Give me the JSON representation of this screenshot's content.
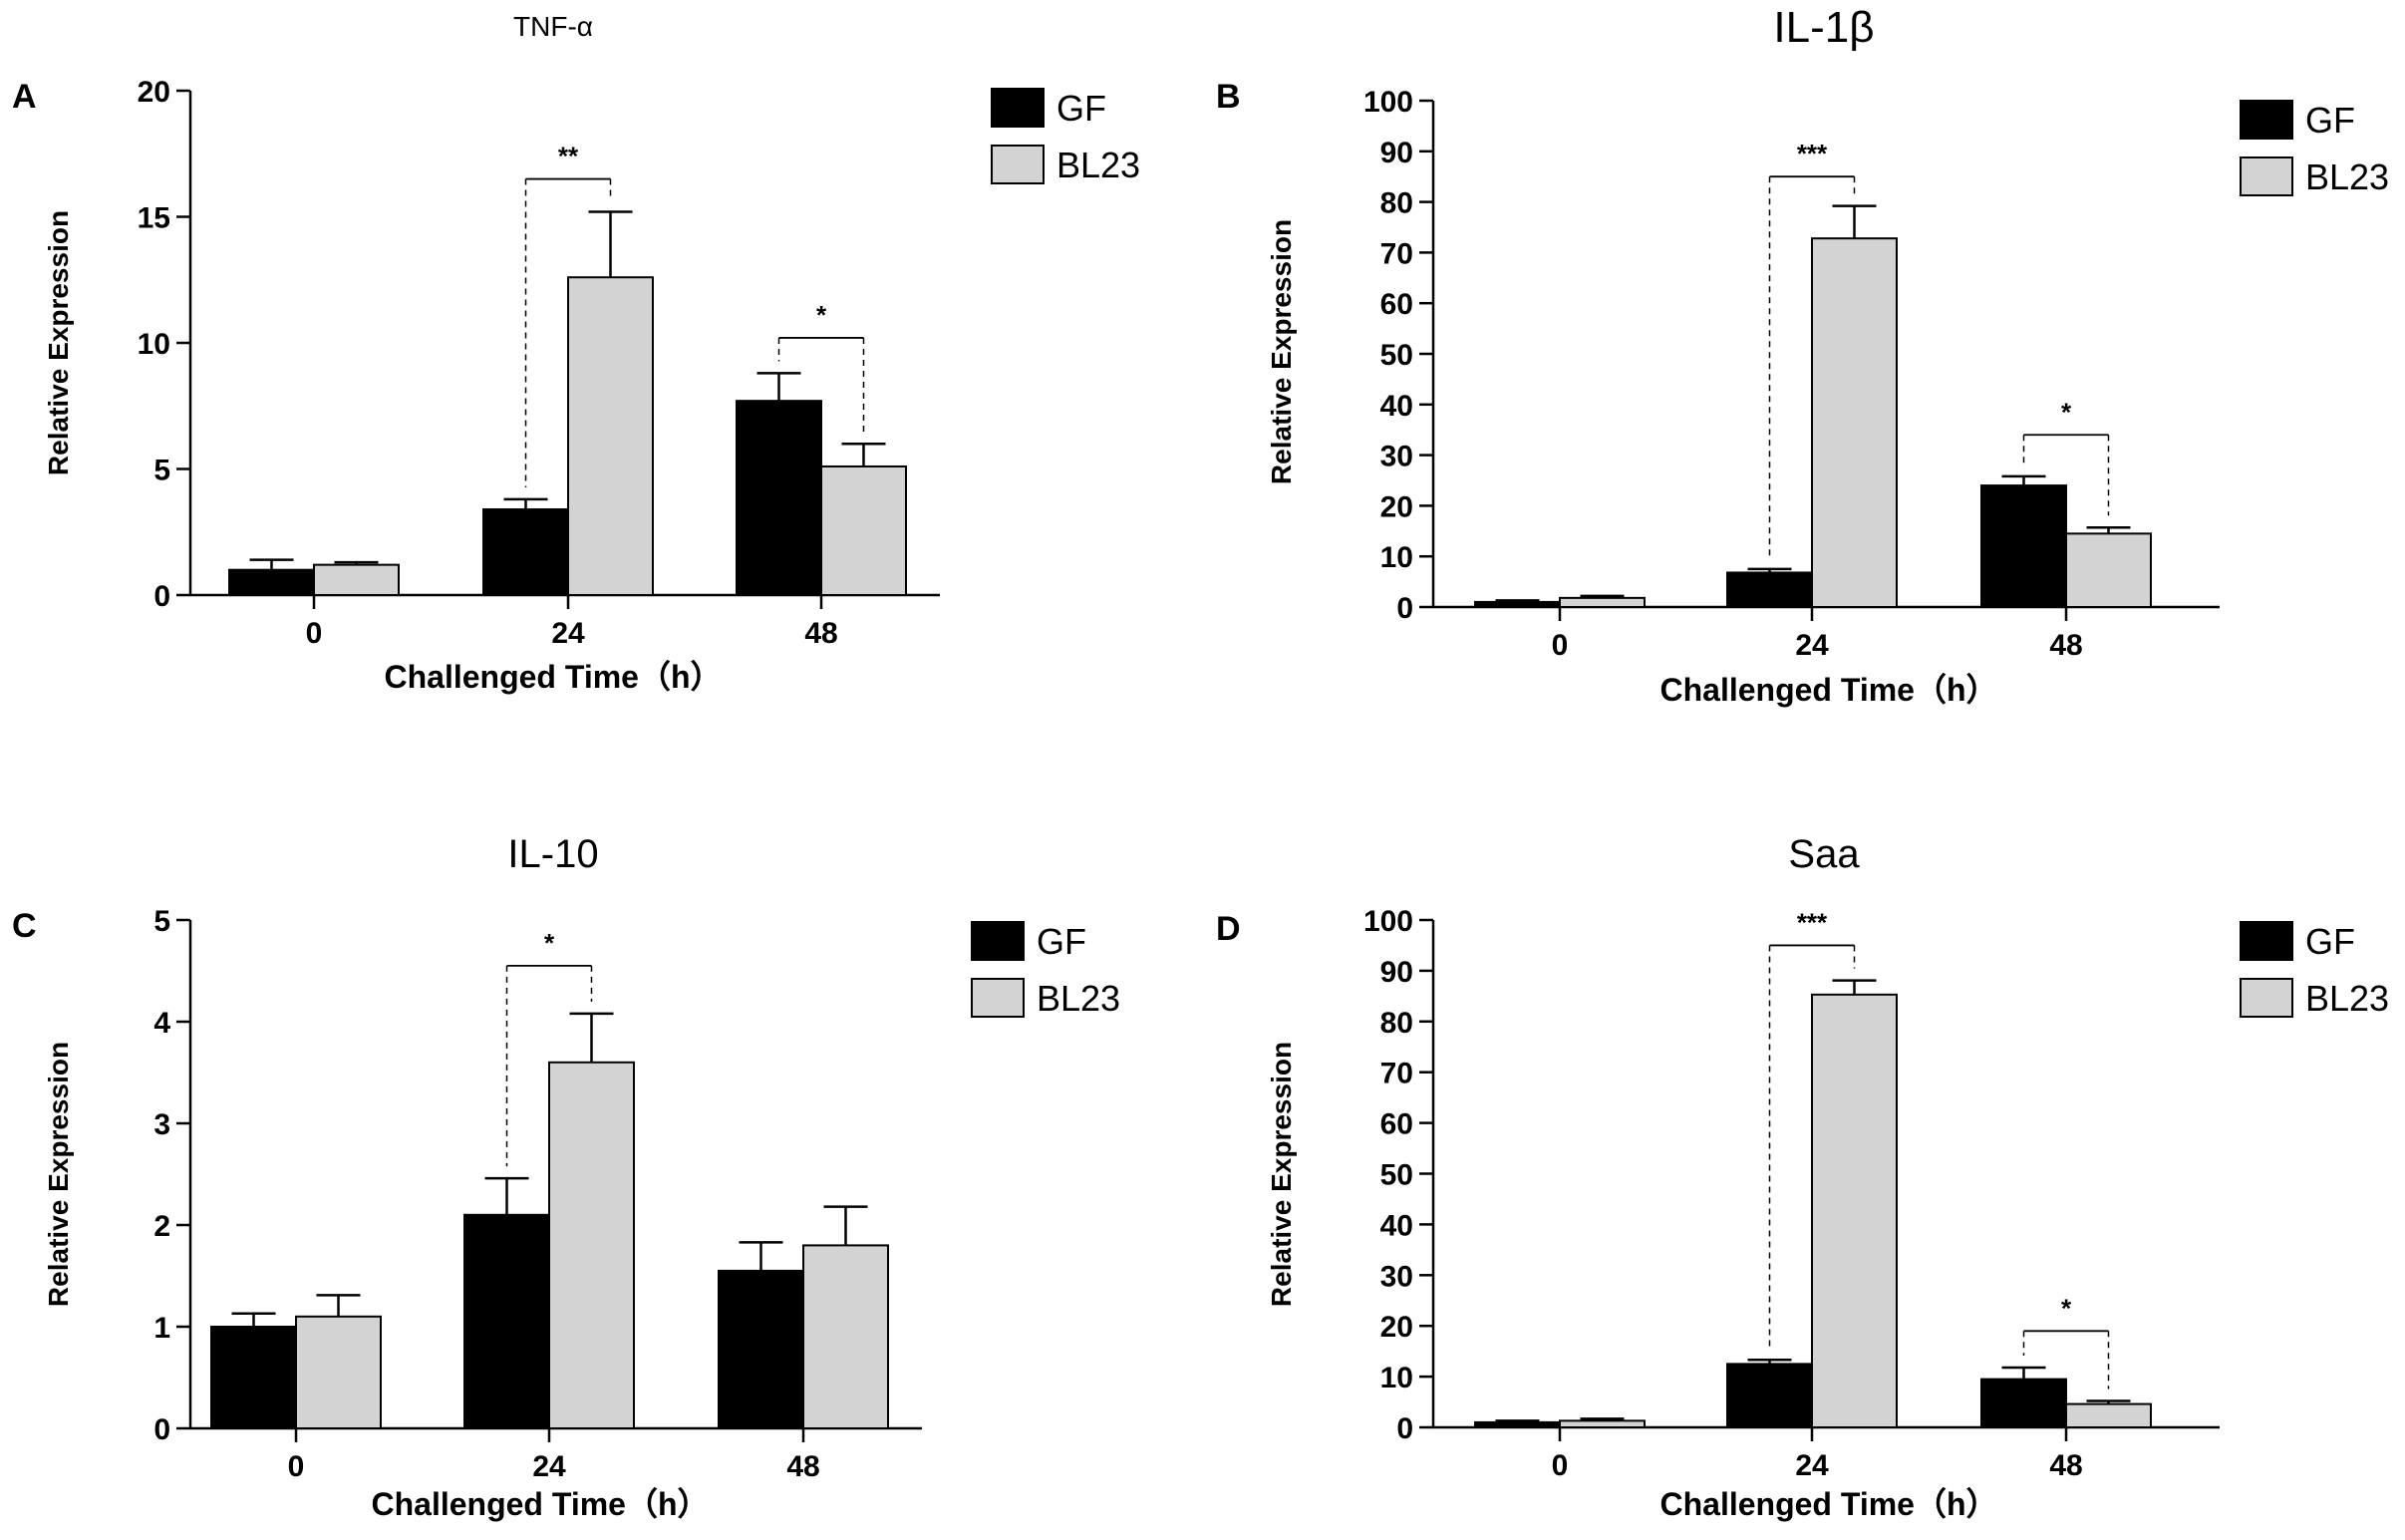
{
  "chart_data": [
    {
      "panel": "A",
      "type": "bar",
      "title": "TNF-α",
      "xlabel": "Challenged Time（h）",
      "ylabel": "Relative Expression",
      "categories": [
        "0",
        "24",
        "48"
      ],
      "ylim": [
        0,
        20
      ],
      "yticks": [
        0,
        5,
        10,
        15,
        20
      ],
      "series": [
        {
          "name": "GF",
          "color": "#000000",
          "values": [
            1.0,
            3.4,
            7.7
          ],
          "errors": [
            0.4,
            0.4,
            1.1
          ]
        },
        {
          "name": "BL23",
          "color": "#d3d3d3",
          "values": [
            1.2,
            12.6,
            5.1
          ],
          "errors": [
            0.1,
            2.6,
            0.9
          ]
        }
      ],
      "significance": [
        {
          "category": "24",
          "label": "**",
          "top": 16.5
        },
        {
          "category": "48",
          "label": "*",
          "top": 10.2
        }
      ]
    },
    {
      "panel": "B",
      "type": "bar",
      "title": "IL-1β",
      "xlabel": "Challenged Time（h）",
      "ylabel": "Relative Expression",
      "categories": [
        "0",
        "24",
        "48"
      ],
      "ylim": [
        0,
        100
      ],
      "yticks": [
        0,
        10,
        20,
        30,
        40,
        50,
        60,
        70,
        80,
        90,
        100
      ],
      "series": [
        {
          "name": "GF",
          "color": "#000000",
          "values": [
            1.0,
            6.8,
            24.0
          ],
          "errors": [
            0.3,
            0.7,
            1.8
          ]
        },
        {
          "name": "BL23",
          "color": "#d3d3d3",
          "values": [
            1.8,
            72.8,
            14.5
          ],
          "errors": [
            0.4,
            6.4,
            1.2
          ]
        }
      ],
      "significance": [
        {
          "category": "24",
          "label": "***",
          "top": 85
        },
        {
          "category": "48",
          "label": "*",
          "top": 34
        }
      ]
    },
    {
      "panel": "C",
      "type": "bar",
      "title": "IL-10",
      "xlabel": "Challenged Time（h）",
      "ylabel": "Relative Expression",
      "categories": [
        "0",
        "24",
        "48"
      ],
      "ylim": [
        0,
        5
      ],
      "yticks": [
        0,
        1,
        2,
        3,
        4,
        5
      ],
      "series": [
        {
          "name": "GF",
          "color": "#000000",
          "values": [
            1.0,
            2.1,
            1.55
          ],
          "errors": [
            0.13,
            0.36,
            0.28
          ]
        },
        {
          "name": "BL23",
          "color": "#d3d3d3",
          "values": [
            1.1,
            3.6,
            1.8
          ],
          "errors": [
            0.21,
            0.48,
            0.38
          ]
        }
      ],
      "significance": [
        {
          "category": "24",
          "label": "*",
          "top": 4.55
        }
      ]
    },
    {
      "panel": "D",
      "type": "bar",
      "title": "Saa",
      "xlabel": "Challenged Time（h）",
      "ylabel": "Relative Expression",
      "categories": [
        "0",
        "24",
        "48"
      ],
      "ylim": [
        0,
        100
      ],
      "yticks": [
        0,
        10,
        20,
        30,
        40,
        50,
        60,
        70,
        80,
        90,
        100
      ],
      "series": [
        {
          "name": "GF",
          "color": "#000000",
          "values": [
            1.0,
            12.5,
            9.5
          ],
          "errors": [
            0.3,
            0.8,
            2.3
          ]
        },
        {
          "name": "BL23",
          "color": "#d3d3d3",
          "values": [
            1.3,
            85.3,
            4.6
          ],
          "errors": [
            0.4,
            2.8,
            0.6
          ]
        }
      ],
      "significance": [
        {
          "category": "24",
          "label": "***",
          "top": 95
        },
        {
          "category": "48",
          "label": "*",
          "top": 19
        }
      ]
    }
  ]
}
